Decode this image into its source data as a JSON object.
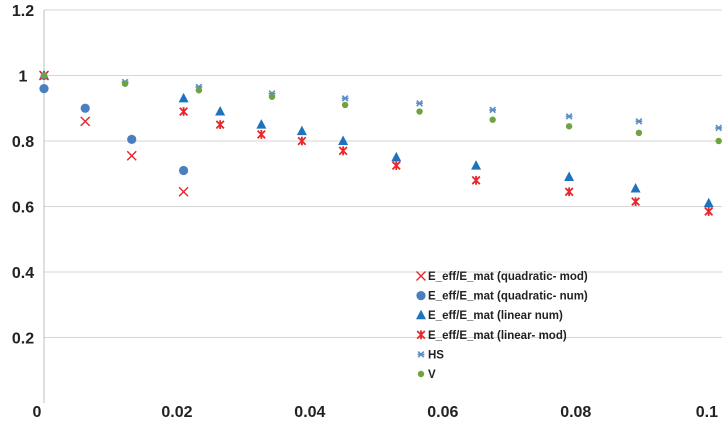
{
  "chart_data": {
    "type": "scatter",
    "title": "",
    "xlabel": "",
    "ylabel": "",
    "xlim": [
      0,
      0.102
    ],
    "ylim": [
      0,
      1.2
    ],
    "x_ticks": [
      0,
      0.02,
      0.04,
      0.06,
      0.08,
      0.1
    ],
    "x_tick_labels": [
      "0",
      "0.02",
      "0.04",
      "0.06",
      "0.08",
      "0.1"
    ],
    "y_ticks": [
      0.2,
      0.4,
      0.6,
      0.8,
      1,
      1.2
    ],
    "y_tick_labels": [
      "0.2",
      "0.4",
      "0.6",
      "0.8",
      "1",
      "1.2"
    ],
    "grid": "horizontal",
    "legend_position": "bottom-right",
    "series": [
      {
        "name": "E_eff/E_mat (quadratic- mod)",
        "marker": "x-cross",
        "color": "#e8262b",
        "points": [
          [
            0,
            1.0
          ],
          [
            0.0062,
            0.86
          ],
          [
            0.0132,
            0.755
          ],
          [
            0.021,
            0.645
          ]
        ]
      },
      {
        "name": "E_eff/E_mat (quadratic- num)",
        "marker": "circle",
        "color": "#4a7ec0",
        "points": [
          [
            0,
            0.96
          ],
          [
            0.0062,
            0.9
          ],
          [
            0.0132,
            0.805
          ],
          [
            0.021,
            0.71
          ]
        ]
      },
      {
        "name": "E_eff/E_mat (linear num)",
        "marker": "triangle",
        "color": "#1e73be",
        "points": [
          [
            0,
            1.0
          ],
          [
            0.021,
            0.93
          ],
          [
            0.0265,
            0.89
          ],
          [
            0.0327,
            0.85
          ],
          [
            0.0388,
            0.83
          ],
          [
            0.045,
            0.8
          ],
          [
            0.053,
            0.75
          ],
          [
            0.065,
            0.725
          ],
          [
            0.079,
            0.69
          ],
          [
            0.089,
            0.655
          ],
          [
            0.1,
            0.61
          ]
        ]
      },
      {
        "name": "E_eff/E_mat (linear- mod)",
        "marker": "asterisk",
        "color": "#e8262b",
        "points": [
          [
            0,
            1.0
          ],
          [
            0.021,
            0.89
          ],
          [
            0.0265,
            0.85
          ],
          [
            0.0327,
            0.82
          ],
          [
            0.0388,
            0.8
          ],
          [
            0.045,
            0.77
          ],
          [
            0.053,
            0.725
          ],
          [
            0.065,
            0.68
          ],
          [
            0.079,
            0.645
          ],
          [
            0.089,
            0.615
          ],
          [
            0.1,
            0.585
          ]
        ]
      },
      {
        "name": "HS",
        "marker": "star",
        "color": "#5b8cc6",
        "points": [
          [
            0,
            1.0
          ],
          [
            0.0122,
            0.98
          ],
          [
            0.0233,
            0.965
          ],
          [
            0.0343,
            0.945
          ],
          [
            0.0453,
            0.93
          ],
          [
            0.0565,
            0.915
          ],
          [
            0.0675,
            0.895
          ],
          [
            0.079,
            0.875
          ],
          [
            0.0895,
            0.86
          ],
          [
            0.1015,
            0.84
          ]
        ]
      },
      {
        "name": "V",
        "marker": "circle-small",
        "color": "#6fa33f",
        "points": [
          [
            0,
            1.0
          ],
          [
            0.0122,
            0.975
          ],
          [
            0.0233,
            0.955
          ],
          [
            0.0343,
            0.935
          ],
          [
            0.0453,
            0.91
          ],
          [
            0.0565,
            0.89
          ],
          [
            0.0675,
            0.865
          ],
          [
            0.079,
            0.845
          ],
          [
            0.0895,
            0.825
          ],
          [
            0.1015,
            0.8
          ]
        ]
      }
    ]
  }
}
